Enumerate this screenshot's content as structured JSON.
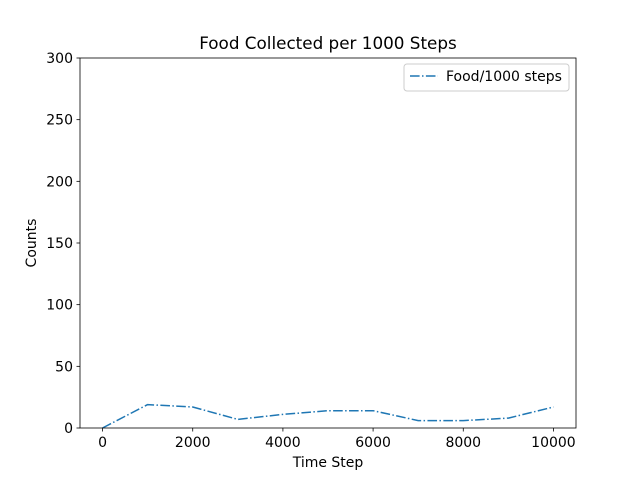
{
  "colors": {
    "background": "#ffffff",
    "axes": "#000000",
    "series": "#1f77b4",
    "legend_border": "#cccccc"
  },
  "chart_data": {
    "type": "line",
    "title": "Food Collected per 1000 Steps",
    "xlabel": "Time Step",
    "ylabel": "Counts",
    "xlim": [
      -500,
      10500
    ],
    "ylim": [
      0,
      300
    ],
    "xticks": [
      0,
      2000,
      4000,
      6000,
      8000,
      10000
    ],
    "yticks": [
      0,
      50,
      100,
      150,
      200,
      250,
      300
    ],
    "grid": false,
    "legend_position": "top-right",
    "series": [
      {
        "name": "Food/1000 steps",
        "line_style": "dash-dot",
        "x": [
          0,
          1000,
          2000,
          3000,
          4000,
          5000,
          6000,
          7000,
          8000,
          9000,
          10000
        ],
        "y": [
          0,
          19,
          17,
          7,
          11,
          14,
          14,
          6,
          6,
          8,
          17
        ]
      }
    ]
  }
}
